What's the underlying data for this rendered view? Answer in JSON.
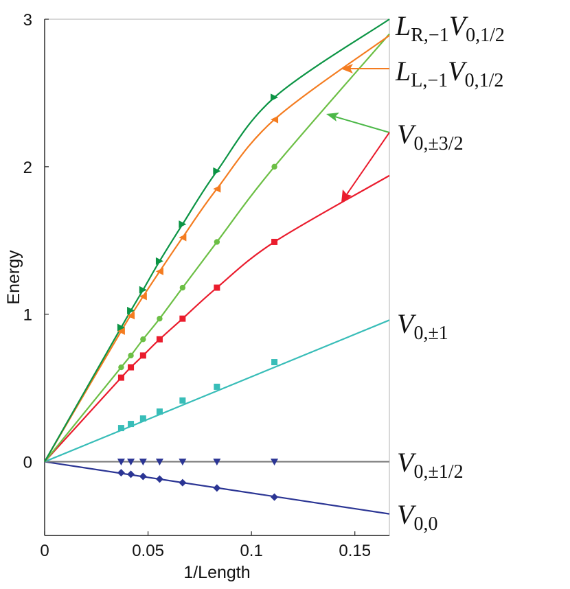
{
  "chart_data": {
    "type": "line",
    "title": "",
    "xlabel": "1/Length",
    "ylabel": "Energy",
    "xlim": [
      0,
      0.1667
    ],
    "ylim": [
      -0.5,
      3
    ],
    "xticks": [
      "0",
      "0.05",
      "0.1",
      "0.15"
    ],
    "xtick_values": [
      0,
      0.05,
      0.1,
      0.15
    ],
    "yticks": [
      "0",
      "1",
      "2",
      "3"
    ],
    "ytick_values": [
      0,
      1,
      2,
      3
    ],
    "grid": false,
    "x": [
      0.037,
      0.0417,
      0.0476,
      0.0556,
      0.0667,
      0.0833,
      0.1111
    ],
    "series": [
      {
        "name": "V_{0,0}",
        "label_main": "V",
        "label_sub": "0,0",
        "color": "#2b3594",
        "marker": "diamond",
        "values": [
          -0.075,
          -0.085,
          -0.1,
          -0.118,
          -0.142,
          -0.178,
          -0.24
        ],
        "end": -0.354,
        "line": "linear"
      },
      {
        "name": "V_{0,±1/2}",
        "label_main": "V",
        "label_sub": "0,±1/2",
        "color": "#2b3594",
        "line_color": "#7a7a7a",
        "marker": "triangle-down",
        "values": [
          0,
          0,
          0,
          0,
          0,
          0,
          0
        ],
        "end": 0,
        "line": "linear"
      },
      {
        "name": "V_{0,±1}",
        "label_main": "V",
        "label_sub": "0,±1",
        "color": "#38bdb8",
        "marker": "square",
        "values": [
          0.228,
          0.256,
          0.293,
          0.34,
          0.415,
          0.508,
          0.675
        ],
        "end": 0.96,
        "line": "linear"
      },
      {
        "name": "V_{0,±3/2} (lower)",
        "color": "#ea1c2d",
        "marker": "square",
        "values": [
          0.57,
          0.64,
          0.72,
          0.83,
          0.97,
          1.18,
          1.49
        ],
        "end": 1.94,
        "line": "curve"
      },
      {
        "name": "V_{0,±3/2} (upper)",
        "color": "#6cbf45",
        "marker": "circle",
        "values": [
          0.64,
          0.72,
          0.83,
          0.97,
          1.18,
          1.49,
          2.0
        ],
        "end": 2.9,
        "line": "curve"
      },
      {
        "name": "L_{L,-1}V_{0,1/2}",
        "label_main1": "L",
        "label_sub1": "L,−1",
        "label_main2": "V",
        "label_sub2": "0,1/2",
        "color": "#f47c20",
        "marker": "triangle-left",
        "values": [
          0.885,
          0.99,
          1.12,
          1.29,
          1.52,
          1.85,
          2.32
        ],
        "end": 2.89,
        "line": "curve"
      },
      {
        "name": "L_{R,-1}V_{0,1/2}",
        "label_main1": "L",
        "label_sub1": "R,−1",
        "label_main2": "V",
        "label_sub2": "0,1/2",
        "color": "#0b9444",
        "marker": "triangle-right",
        "values": [
          0.91,
          1.025,
          1.165,
          1.36,
          1.61,
          1.97,
          2.47
        ],
        "end": 3.0,
        "line": "curve"
      }
    ],
    "annotations": {
      "v32_main": "V",
      "v32_sub": "0,±3/2"
    }
  }
}
